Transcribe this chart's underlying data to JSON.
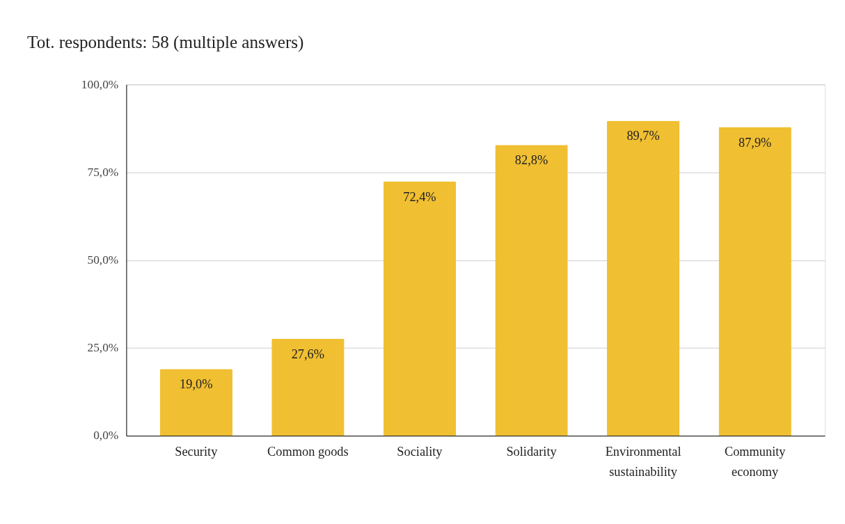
{
  "chart_data": {
    "type": "bar",
    "title": "Tot. respondents: 58 (multiple answers)",
    "categories": [
      "Security",
      "Common goods",
      "Sociality",
      "Solidarity",
      "Environmental\nsustainability",
      "Community\neconomy"
    ],
    "values": [
      19.0,
      27.6,
      72.4,
      82.8,
      89.7,
      87.9
    ],
    "value_labels": [
      "19,0%",
      "27,6%",
      "72,4%",
      "82,8%",
      "89,7%",
      "87,9%"
    ],
    "color": "#f0bf32",
    "ylim": [
      0,
      100
    ],
    "yticks": [
      {
        "value": 0,
        "label": "0,0%"
      },
      {
        "value": 25,
        "label": "25,0%"
      },
      {
        "value": 50,
        "label": "50,0%"
      },
      {
        "value": 75,
        "label": "75,0%"
      },
      {
        "value": 100,
        "label": "100,0%"
      }
    ],
    "grid": "y"
  }
}
